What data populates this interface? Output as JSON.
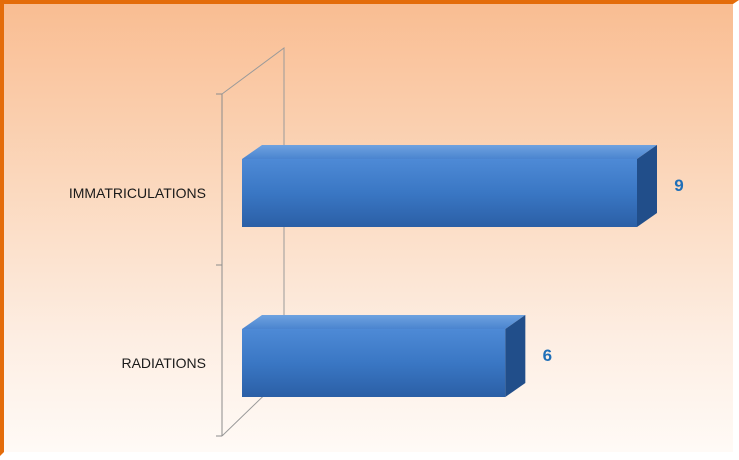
{
  "chart_data": {
    "type": "bar",
    "orientation": "horizontal",
    "style": "3d",
    "categories": [
      "RADIATIONS",
      "IMMATRICULATIONS"
    ],
    "values": [
      6,
      9
    ],
    "title": "",
    "xlabel": "",
    "ylabel": "",
    "xlim": [
      0,
      9
    ],
    "grid": false,
    "legend": "none",
    "colors": {
      "bar": "#3a77c4",
      "bar_top": "#5b93d8",
      "bar_side": "#214e8a",
      "value_label": "#1f6fb8",
      "border": "#e46c0a"
    }
  }
}
